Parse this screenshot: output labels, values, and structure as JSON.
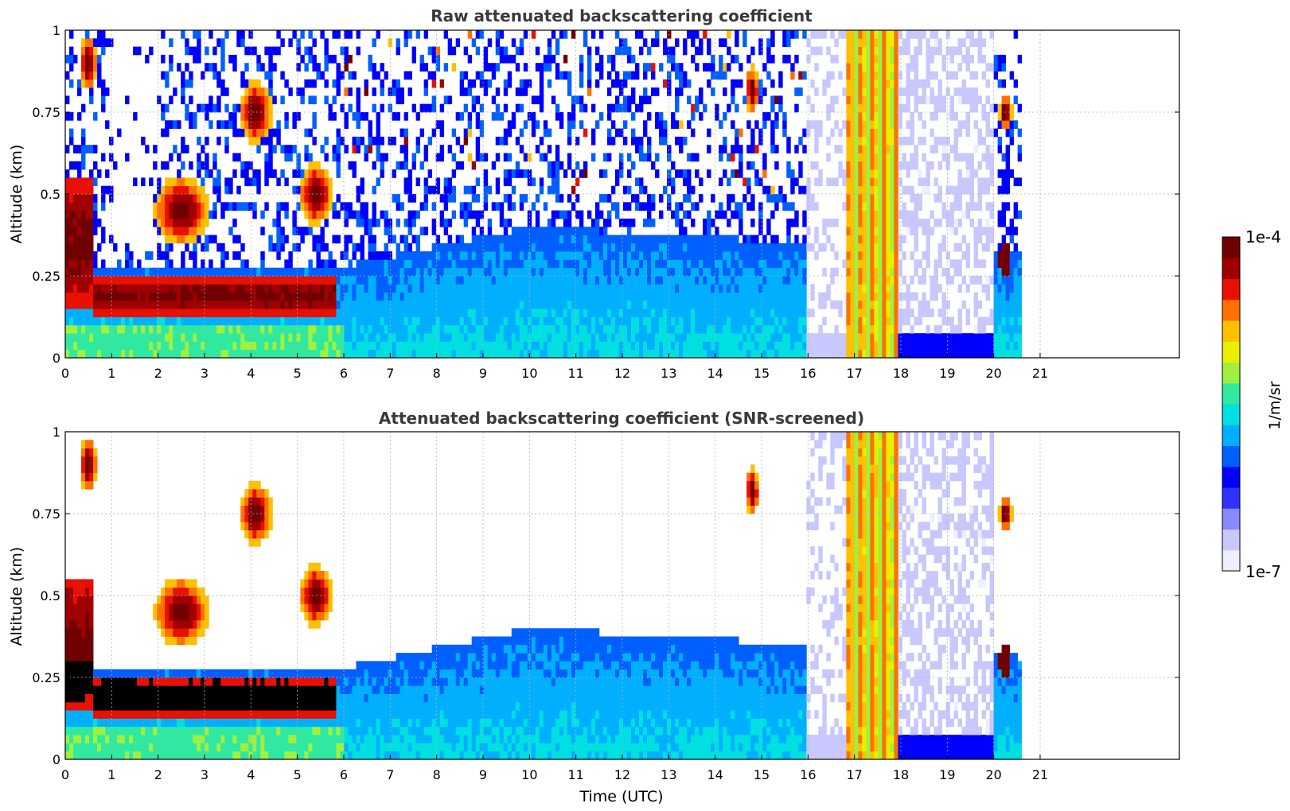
{
  "chart_data": [
    {
      "type": "heatmap",
      "title": "Raw attenuated backscattering coefficient",
      "xlabel": "",
      "ylabel": "Altitude (km)",
      "xlim": [
        0,
        24
      ],
      "ylim": [
        0,
        1
      ],
      "xticks": [
        "0",
        "1",
        "2",
        "3",
        "4",
        "5",
        "6",
        "7",
        "8",
        "9",
        "10",
        "11",
        "12",
        "13",
        "14",
        "15",
        "16",
        "17",
        "18",
        "19",
        "20",
        "21"
      ],
      "yticks": [
        "0",
        "0.25",
        "0.5",
        "0.75",
        "1"
      ],
      "data_end_hour": 20.6,
      "grid": true,
      "features": [
        {
          "desc": "dense aerosol/cloud layer (dark red)",
          "t_start": 0.5,
          "t_end": 5.8,
          "alt_low": 0.12,
          "alt_high": 0.27,
          "level": "1e-4"
        },
        {
          "desc": "elevated layer",
          "t_start": 2.1,
          "t_end": 3.1,
          "alt_low": 0.35,
          "alt_high": 0.55,
          "level": "1e-4"
        },
        {
          "desc": "elevated layer",
          "t_start": 3.8,
          "t_end": 4.5,
          "alt_low": 0.65,
          "alt_high": 0.85,
          "level": "1e-4"
        },
        {
          "desc": "precipitation/fog band (yellow-orange)",
          "t_start": 16.85,
          "t_end": 17.95,
          "alt_low": 0.0,
          "alt_high": 1.0,
          "level": "1e-5"
        },
        {
          "desc": "low cloud",
          "t_start": 20.05,
          "t_end": 20.45,
          "alt_low": 0.22,
          "alt_high": 0.36,
          "level": "1e-4"
        }
      ]
    },
    {
      "type": "heatmap",
      "title": "Attenuated backscattering coefficient (SNR-screened)",
      "xlabel": "Time (UTC)",
      "ylabel": "Altitude (km)",
      "xlim": [
        0,
        24
      ],
      "ylim": [
        0,
        1
      ],
      "xticks": [
        "0",
        "1",
        "2",
        "3",
        "4",
        "5",
        "6",
        "7",
        "8",
        "9",
        "10",
        "11",
        "12",
        "13",
        "14",
        "15",
        "16",
        "17",
        "18",
        "19",
        "20",
        "21"
      ],
      "yticks": [
        "0",
        "0.25",
        "0.5",
        "0.75",
        "1"
      ],
      "data_end_hour": 20.6,
      "grid": true,
      "features": [
        {
          "desc": "saturated layer (black)",
          "t_start": 0.5,
          "t_end": 5.8,
          "alt_low": 0.1,
          "alt_high": 0.27,
          "level": ">1e-4"
        },
        {
          "desc": "precipitation/fog band (yellow-orange)",
          "t_start": 16.85,
          "t_end": 17.95,
          "alt_low": 0.0,
          "alt_high": 1.0,
          "level": "1e-5"
        }
      ]
    }
  ],
  "colorbar": {
    "label": "1/m/sr",
    "max_label": "1e-4",
    "min_label": "1e-7",
    "colormap": [
      "#eeeeff",
      "#c8c8ff",
      "#8888ff",
      "#3030ff",
      "#0000ff",
      "#0060ff",
      "#00b0ff",
      "#00e0e0",
      "#30e8a0",
      "#a0f040",
      "#e8f000",
      "#ffc000",
      "#ff7000",
      "#e81000",
      "#a00000",
      "#700000"
    ]
  }
}
